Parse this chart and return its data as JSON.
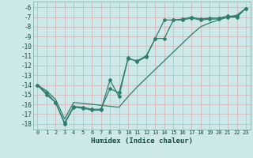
{
  "xlabel": "Humidex (Indice chaleur)",
  "background_color": "#cce8e8",
  "grid_color": "#b0d0d0",
  "line_color": "#2e7d6e",
  "xlim": [
    -0.5,
    23.5
  ],
  "ylim": [
    -18.6,
    -5.4
  ],
  "yticks": [
    -6,
    -7,
    -8,
    -9,
    -10,
    -11,
    -12,
    -13,
    -14,
    -15,
    -16,
    -17,
    -18
  ],
  "xticks": [
    0,
    1,
    2,
    3,
    4,
    5,
    6,
    7,
    8,
    9,
    10,
    11,
    12,
    13,
    14,
    15,
    16,
    17,
    18,
    19,
    20,
    21,
    22,
    23
  ],
  "line1_x": [
    0,
    1,
    2,
    3,
    4,
    5,
    6,
    7,
    8,
    9,
    10,
    11,
    12,
    13,
    14,
    15,
    16,
    17,
    18,
    19,
    20,
    21,
    22,
    23
  ],
  "line1_y": [
    -14,
    -15,
    -15.8,
    -18,
    -16.3,
    -16.4,
    -16.6,
    -16.6,
    -13.5,
    -15.2,
    -11.2,
    -11.6,
    -11.1,
    -9.2,
    -7.3,
    -7.3,
    -7.3,
    -7.1,
    -7.3,
    -7.2,
    -7.2,
    -7.0,
    -7.0,
    -6.1
  ],
  "line2_x": [
    0,
    1,
    2,
    3,
    4,
    5,
    6,
    7,
    8,
    9,
    10,
    11,
    12,
    13,
    14,
    15,
    16,
    17,
    18,
    19,
    20,
    21,
    22,
    23
  ],
  "line2_y": [
    -14,
    -14.8,
    -15.8,
    -17.9,
    -16.2,
    -16.3,
    -16.5,
    -16.5,
    -14.4,
    -14.8,
    -11.3,
    -11.5,
    -11.0,
    -9.2,
    -9.2,
    -7.3,
    -7.2,
    -7.0,
    -7.2,
    -7.1,
    -7.1,
    -6.9,
    -6.9,
    -6.1
  ],
  "line3_x": [
    0,
    1,
    2,
    3,
    4,
    5,
    6,
    7,
    8,
    9,
    10,
    11,
    12,
    13,
    14,
    15,
    16,
    17,
    18,
    19,
    20,
    21,
    22,
    23
  ],
  "line3_y": [
    -14.0,
    -14.6,
    -15.5,
    -17.5,
    -15.8,
    -15.9,
    -16.0,
    -16.1,
    -16.2,
    -16.3,
    -15.2,
    -14.2,
    -13.3,
    -12.4,
    -11.5,
    -10.6,
    -9.7,
    -8.8,
    -8.0,
    -7.6,
    -7.3,
    -7.0,
    -6.8,
    -6.1
  ]
}
